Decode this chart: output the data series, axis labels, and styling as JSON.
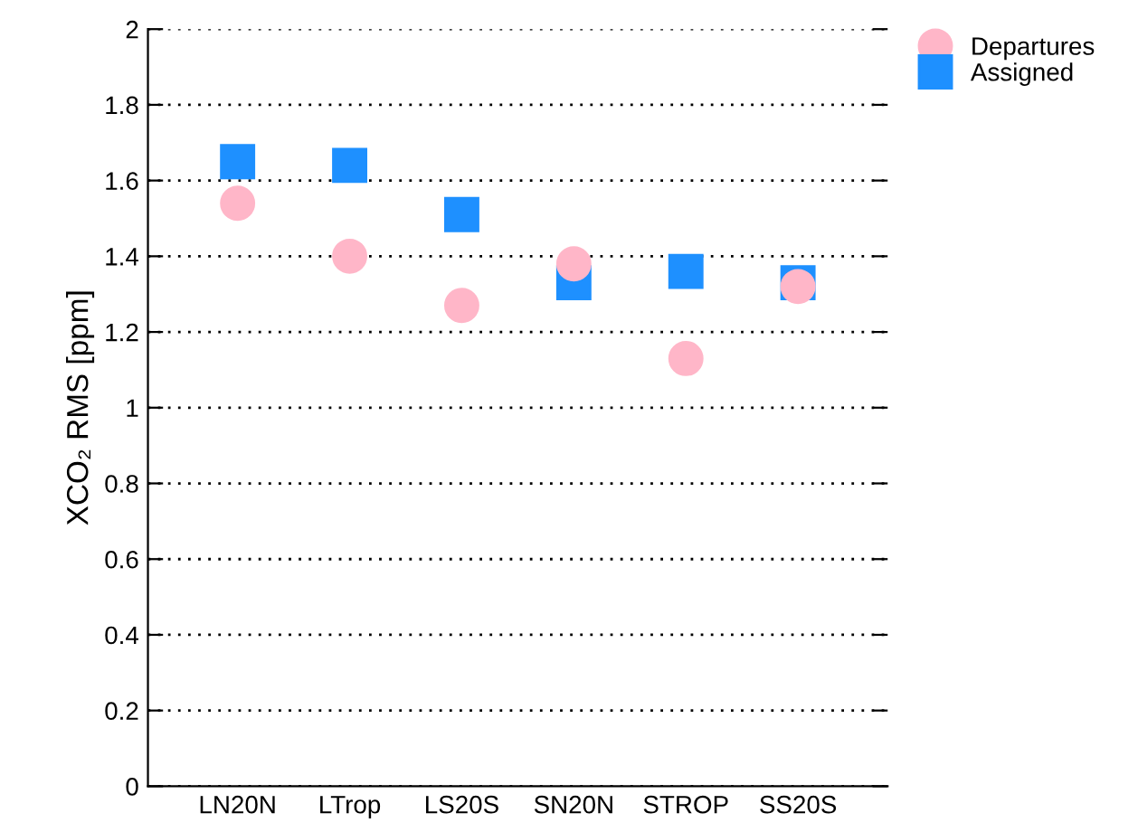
{
  "chart_data": {
    "type": "scatter",
    "ylabel": "XCO₂ RMS [ppm]",
    "categories": [
      "LN20N",
      "LTrop",
      "LS20S",
      "SN20N",
      "STROP",
      "SS20S"
    ],
    "series": [
      {
        "name": "Departures",
        "color": "#ffb6c8",
        "marker": "circle",
        "values": [
          1.54,
          1.4,
          1.27,
          1.38,
          1.13,
          1.32
        ]
      },
      {
        "name": "Assigned",
        "color": "#1e90ff",
        "marker": "square",
        "values": [
          1.65,
          1.64,
          1.51,
          1.33,
          1.36,
          1.33
        ]
      }
    ],
    "ylim": [
      0,
      2
    ],
    "yticks": [
      0,
      0.2,
      0.4,
      0.6,
      0.8,
      1,
      1.2,
      1.4,
      1.6,
      1.8,
      2
    ],
    "grid": "y",
    "legend": "top right"
  }
}
